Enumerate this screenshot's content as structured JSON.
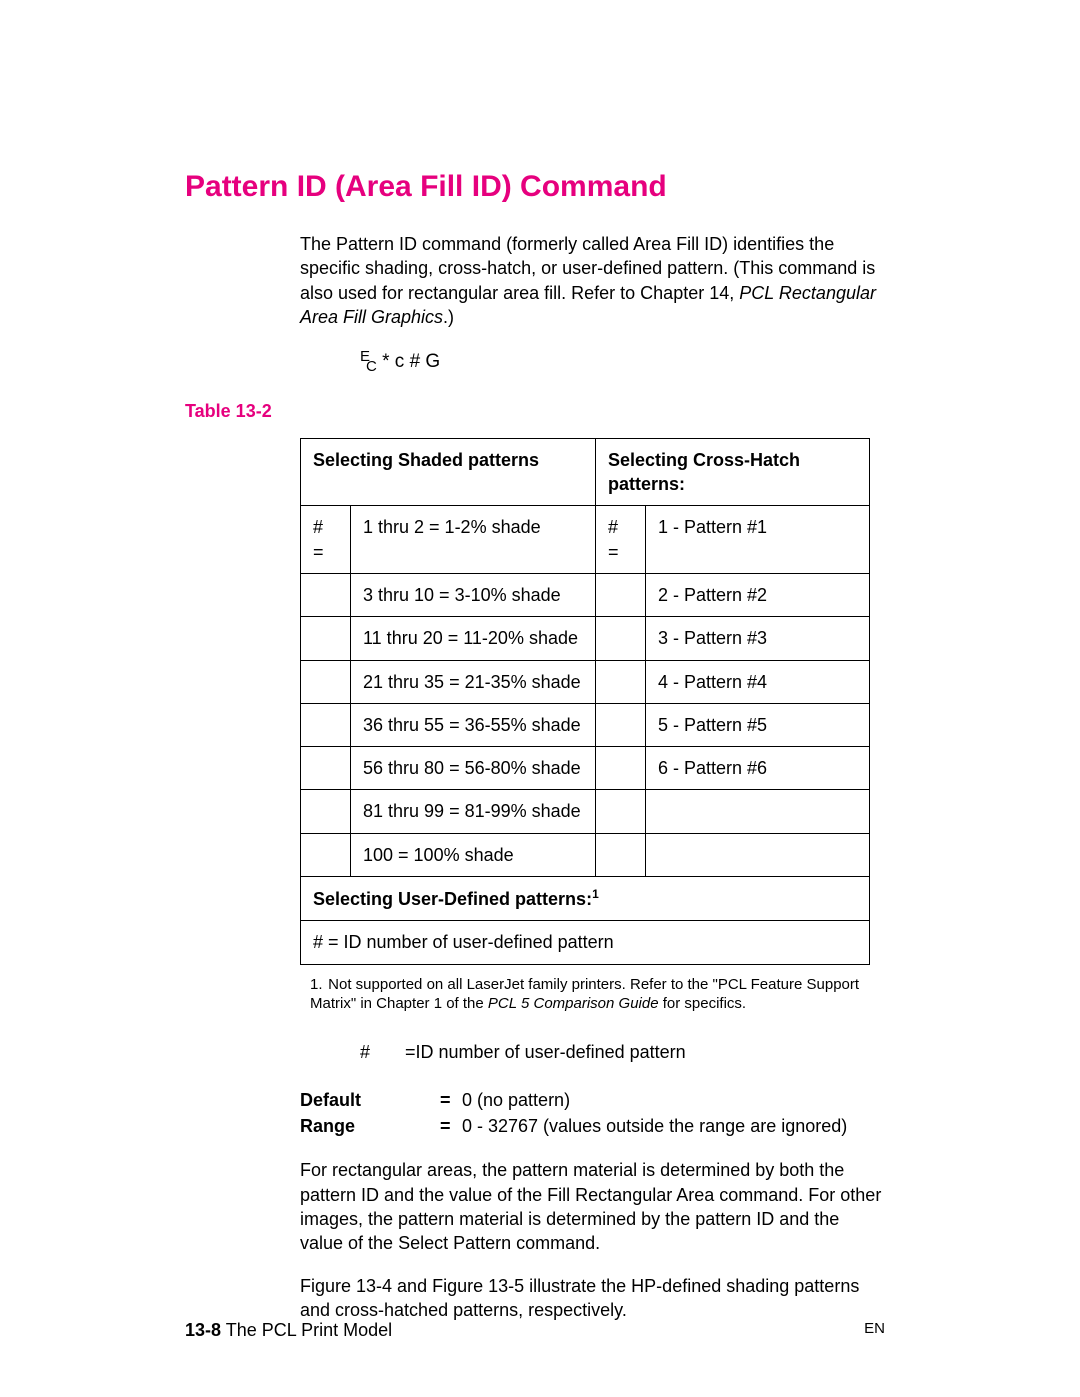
{
  "title": "Pattern ID (Area Fill ID) Command",
  "intro": {
    "line1": "The Pattern ID command (formerly called Area Fill ID) identifies the specific shading, cross-hatch, or user-defined pattern. (This command is also used for rectangular area fill. Refer to Chapter 14, ",
    "italic": "PCL Rectangular Area Fill Graphics",
    "after": ".)"
  },
  "syntax": {
    "e": "E",
    "c": "C",
    "rest": " * c # G"
  },
  "tableLabel": "Table 13-2",
  "tableHeaders": {
    "shaded": "Selecting Shaded patterns",
    "cross": "Selecting Cross-Hatch patterns:"
  },
  "hashSymbol": "# =",
  "shadeRows": [
    "1 thru 2 = 1-2% shade",
    "3 thru 10 = 3-10% shade",
    "11 thru 20 = 11-20% shade",
    "21 thru 35 = 21-35% shade",
    "36 thru 55 = 36-55% shade",
    "56 thru 80 = 56-80% shade",
    "81 thru 99 = 81-99% shade",
    "100 = 100% shade"
  ],
  "crossRows": [
    "1 - Pattern #1",
    "2 - Pattern #2",
    "3 - Pattern #3",
    "4 - Pattern #4",
    "5 - Pattern #5",
    "6 - Pattern #6",
    "",
    ""
  ],
  "userDefHeader": "Selecting User-Defined patterns:",
  "userDefSup": "1",
  "userDefRow": "# = ID number of user-defined pattern",
  "footnote": {
    "num": "1.",
    "textA": "Not supported on all LaserJet family printers. Refer to the \"PCL Feature Support Matrix\" in Chapter 1 of the ",
    "italic": "PCL 5 Comparison Guide",
    "textB": " for specifics."
  },
  "idLine": {
    "hash": "#",
    "eq": "=",
    "text": "ID number of user-defined pattern"
  },
  "defaultLabel": "Default",
  "defaultVal": "0 (no pattern)",
  "rangeLabel": "Range",
  "rangeVal": "0 - 32767 (values outside the range are ignored)",
  "para1": "For rectangular areas, the pattern material is determined by both the pattern ID and the value of the Fill Rectangular Area command. For other images, the pattern material is determined by the pattern ID and the value of the Select Pattern command.",
  "para2": "Figure 13-4 and Figure 13-5 illustrate the HP-defined shading patterns and cross-hatched patterns, respectively.",
  "footer": {
    "pageno": "13-8",
    "chapter": "The PCL Print Model",
    "en": "EN"
  }
}
